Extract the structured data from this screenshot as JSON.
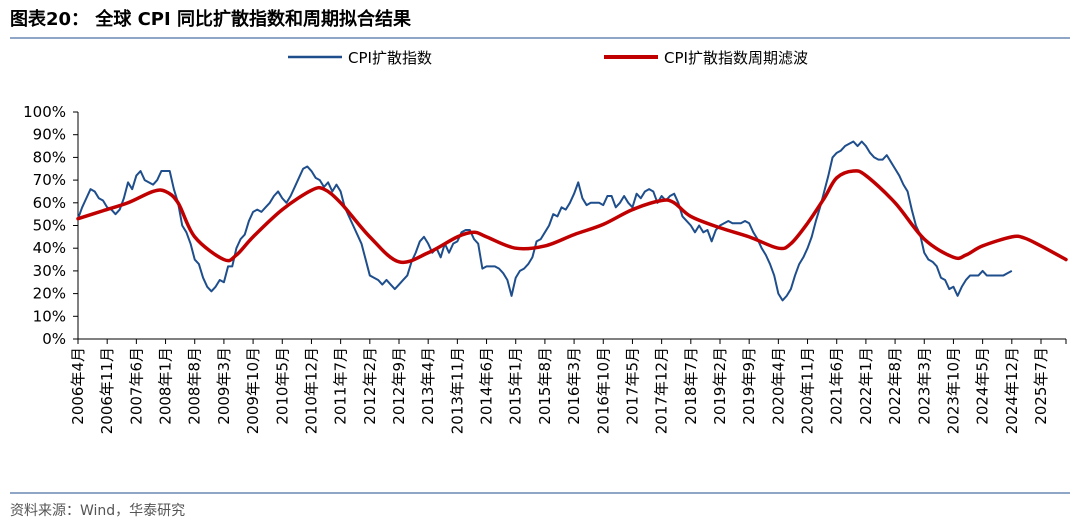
{
  "figure": {
    "title": "图表20：  全球 CPI 同比扩散指数和周期拟合结果",
    "source": "资料来源：Wind，华泰研究"
  },
  "colors": {
    "raw_series": "#1f4e8c",
    "filtered_series": "#c00000",
    "rule": "#1f4e8c",
    "axis": "#000000"
  },
  "chart_data": {
    "type": "line",
    "y_unit": "%",
    "ylim": [
      0,
      100
    ],
    "y_ticks": [
      0,
      10,
      20,
      30,
      40,
      50,
      60,
      70,
      80,
      90,
      100
    ],
    "y_tick_labels": [
      "0%",
      "10%",
      "20%",
      "30%",
      "40%",
      "50%",
      "60%",
      "70%",
      "80%",
      "90%",
      "100%"
    ],
    "x_range": [
      "2006-04",
      "2026-01"
    ],
    "x_tick_labels": [
      "2006年4月",
      "2006年11月",
      "2007年6月",
      "2008年1月",
      "2008年8月",
      "2009年3月",
      "2009年10月",
      "2010年5月",
      "2010年12月",
      "2011年7月",
      "2012年2月",
      "2012年9月",
      "2013年4月",
      "2013年11月",
      "2014年6月",
      "2015年1月",
      "2015年8月",
      "2016年3月",
      "2016年10月",
      "2017年5月",
      "2017年12月",
      "2018年7月",
      "2019年2月",
      "2019年9月",
      "2020年4月",
      "2020年11月",
      "2021年6月",
      "2022年1月",
      "2022年8月",
      "2023年3月",
      "2023年10月",
      "2024年5月",
      "2024年12月",
      "2025年7月"
    ],
    "grid": false,
    "legend_position": "top-center",
    "series": [
      {
        "name": "CPI扩散指数",
        "points": [
          [
            "2006-04",
            53
          ],
          [
            "2006-05",
            58
          ],
          [
            "2006-06",
            62
          ],
          [
            "2006-07",
            66
          ],
          [
            "2006-08",
            65
          ],
          [
            "2006-09",
            62
          ],
          [
            "2006-10",
            61
          ],
          [
            "2006-11",
            58
          ],
          [
            "2006-12",
            57
          ],
          [
            "2007-01",
            55
          ],
          [
            "2007-02",
            57
          ],
          [
            "2007-03",
            62
          ],
          [
            "2007-04",
            69
          ],
          [
            "2007-05",
            66
          ],
          [
            "2007-06",
            72
          ],
          [
            "2007-07",
            74
          ],
          [
            "2007-08",
            70
          ],
          [
            "2007-09",
            69
          ],
          [
            "2007-10",
            68
          ],
          [
            "2007-11",
            70
          ],
          [
            "2007-12",
            74
          ],
          [
            "2008-01",
            74
          ],
          [
            "2008-02",
            74
          ],
          [
            "2008-03",
            66
          ],
          [
            "2008-04",
            60
          ],
          [
            "2008-05",
            50
          ],
          [
            "2008-06",
            47
          ],
          [
            "2008-07",
            42
          ],
          [
            "2008-08",
            35
          ],
          [
            "2008-09",
            33
          ],
          [
            "2008-10",
            27
          ],
          [
            "2008-11",
            23
          ],
          [
            "2008-12",
            21
          ],
          [
            "2009-01",
            23
          ],
          [
            "2009-02",
            26
          ],
          [
            "2009-03",
            25
          ],
          [
            "2009-04",
            32
          ],
          [
            "2009-05",
            32
          ],
          [
            "2009-06",
            40
          ],
          [
            "2009-07",
            44
          ],
          [
            "2009-08",
            46
          ],
          [
            "2009-09",
            52
          ],
          [
            "2009-10",
            56
          ],
          [
            "2009-11",
            57
          ],
          [
            "2009-12",
            56
          ],
          [
            "2010-01",
            58
          ],
          [
            "2010-02",
            60
          ],
          [
            "2010-03",
            63
          ],
          [
            "2010-04",
            65
          ],
          [
            "2010-05",
            62
          ],
          [
            "2010-06",
            60
          ],
          [
            "2010-07",
            63
          ],
          [
            "2010-08",
            67
          ],
          [
            "2010-09",
            71
          ],
          [
            "2010-10",
            75
          ],
          [
            "2010-11",
            76
          ],
          [
            "2010-12",
            74
          ],
          [
            "2011-01",
            71
          ],
          [
            "2011-02",
            70
          ],
          [
            "2011-03",
            67
          ],
          [
            "2011-04",
            69
          ],
          [
            "2011-05",
            65
          ],
          [
            "2011-06",
            68
          ],
          [
            "2011-07",
            65
          ],
          [
            "2011-08",
            58
          ],
          [
            "2011-09",
            54
          ],
          [
            "2011-10",
            50
          ],
          [
            "2011-11",
            46
          ],
          [
            "2011-12",
            42
          ],
          [
            "2012-01",
            35
          ],
          [
            "2012-02",
            28
          ],
          [
            "2012-03",
            27
          ],
          [
            "2012-04",
            26
          ],
          [
            "2012-05",
            24
          ],
          [
            "2012-06",
            26
          ],
          [
            "2012-07",
            24
          ],
          [
            "2012-08",
            22
          ],
          [
            "2012-09",
            24
          ],
          [
            "2012-10",
            26
          ],
          [
            "2012-11",
            28
          ],
          [
            "2012-12",
            34
          ],
          [
            "2013-01",
            38
          ],
          [
            "2013-02",
            43
          ],
          [
            "2013-03",
            45
          ],
          [
            "2013-04",
            42
          ],
          [
            "2013-05",
            38
          ],
          [
            "2013-06",
            40
          ],
          [
            "2013-07",
            36
          ],
          [
            "2013-08",
            42
          ],
          [
            "2013-09",
            38
          ],
          [
            "2013-10",
            42
          ],
          [
            "2013-11",
            43
          ],
          [
            "2013-12",
            47
          ],
          [
            "2014-01",
            48
          ],
          [
            "2014-02",
            48
          ],
          [
            "2014-03",
            44
          ],
          [
            "2014-04",
            42
          ],
          [
            "2014-05",
            31
          ],
          [
            "2014-06",
            32
          ],
          [
            "2014-07",
            32
          ],
          [
            "2014-08",
            32
          ],
          [
            "2014-09",
            31
          ],
          [
            "2014-10",
            29
          ],
          [
            "2014-11",
            26
          ],
          [
            "2014-12",
            19
          ],
          [
            "2015-01",
            27
          ],
          [
            "2015-02",
            30
          ],
          [
            "2015-03",
            31
          ],
          [
            "2015-04",
            33
          ],
          [
            "2015-05",
            36
          ],
          [
            "2015-06",
            43
          ],
          [
            "2015-07",
            44
          ],
          [
            "2015-08",
            47
          ],
          [
            "2015-09",
            50
          ],
          [
            "2015-10",
            55
          ],
          [
            "2015-11",
            54
          ],
          [
            "2015-12",
            58
          ],
          [
            "2016-01",
            57
          ],
          [
            "2016-02",
            60
          ],
          [
            "2016-03",
            64
          ],
          [
            "2016-04",
            69
          ],
          [
            "2016-05",
            62
          ],
          [
            "2016-06",
            59
          ],
          [
            "2016-07",
            60
          ],
          [
            "2016-08",
            60
          ],
          [
            "2016-09",
            60
          ],
          [
            "2016-10",
            59
          ],
          [
            "2016-11",
            63
          ],
          [
            "2016-12",
            63
          ],
          [
            "2017-01",
            58
          ],
          [
            "2017-02",
            60
          ],
          [
            "2017-03",
            63
          ],
          [
            "2017-04",
            60
          ],
          [
            "2017-05",
            58
          ],
          [
            "2017-06",
            64
          ],
          [
            "2017-07",
            62
          ],
          [
            "2017-08",
            65
          ],
          [
            "2017-09",
            66
          ],
          [
            "2017-10",
            65
          ],
          [
            "2017-11",
            60
          ],
          [
            "2017-12",
            63
          ],
          [
            "2018-01",
            61
          ],
          [
            "2018-02",
            63
          ],
          [
            "2018-03",
            64
          ],
          [
            "2018-04",
            60
          ],
          [
            "2018-05",
            54
          ],
          [
            "2018-06",
            52
          ],
          [
            "2018-07",
            50
          ],
          [
            "2018-08",
            47
          ],
          [
            "2018-09",
            50
          ],
          [
            "2018-10",
            47
          ],
          [
            "2018-11",
            48
          ],
          [
            "2018-12",
            43
          ],
          [
            "2019-01",
            48
          ],
          [
            "2019-02",
            50
          ],
          [
            "2019-03",
            51
          ],
          [
            "2019-04",
            52
          ],
          [
            "2019-05",
            51
          ],
          [
            "2019-06",
            51
          ],
          [
            "2019-07",
            51
          ],
          [
            "2019-08",
            52
          ],
          [
            "2019-09",
            51
          ],
          [
            "2019-10",
            47
          ],
          [
            "2019-11",
            44
          ],
          [
            "2019-12",
            40
          ],
          [
            "2020-01",
            37
          ],
          [
            "2020-02",
            33
          ],
          [
            "2020-03",
            28
          ],
          [
            "2020-04",
            20
          ],
          [
            "2020-05",
            17
          ],
          [
            "2020-06",
            19
          ],
          [
            "2020-07",
            22
          ],
          [
            "2020-08",
            28
          ],
          [
            "2020-09",
            33
          ],
          [
            "2020-10",
            36
          ],
          [
            "2020-11",
            40
          ],
          [
            "2020-12",
            45
          ],
          [
            "2021-01",
            52
          ],
          [
            "2021-02",
            58
          ],
          [
            "2021-03",
            65
          ],
          [
            "2021-04",
            72
          ],
          [
            "2021-05",
            80
          ],
          [
            "2021-06",
            82
          ],
          [
            "2021-07",
            83
          ],
          [
            "2021-08",
            85
          ],
          [
            "2021-09",
            86
          ],
          [
            "2021-10",
            87
          ],
          [
            "2021-11",
            85
          ],
          [
            "2021-12",
            87
          ],
          [
            "2022-01",
            85
          ],
          [
            "2022-02",
            82
          ],
          [
            "2022-03",
            80
          ],
          [
            "2022-04",
            79
          ],
          [
            "2022-05",
            79
          ],
          [
            "2022-06",
            81
          ],
          [
            "2022-07",
            78
          ],
          [
            "2022-08",
            75
          ],
          [
            "2022-09",
            72
          ],
          [
            "2022-10",
            68
          ],
          [
            "2022-11",
            65
          ],
          [
            "2022-12",
            57
          ],
          [
            "2023-01",
            50
          ],
          [
            "2023-02",
            46
          ],
          [
            "2023-03",
            38
          ],
          [
            "2023-04",
            35
          ],
          [
            "2023-05",
            34
          ],
          [
            "2023-06",
            32
          ],
          [
            "2023-07",
            27
          ],
          [
            "2023-08",
            26
          ],
          [
            "2023-09",
            22
          ],
          [
            "2023-10",
            23
          ],
          [
            "2023-11",
            19
          ],
          [
            "2023-12",
            23
          ],
          [
            "2024-01",
            26
          ],
          [
            "2024-02",
            28
          ],
          [
            "2024-03",
            28
          ],
          [
            "2024-04",
            28
          ],
          [
            "2024-05",
            30
          ],
          [
            "2024-06",
            28
          ],
          [
            "2024-07",
            28
          ],
          [
            "2024-08",
            28
          ],
          [
            "2024-09",
            28
          ],
          [
            "2024-10",
            28
          ],
          [
            "2024-11",
            29
          ],
          [
            "2024-12",
            30
          ]
        ]
      },
      {
        "name": "CPI扩散指数周期滤波",
        "points": [
          [
            "2006-04",
            53
          ],
          [
            "2006-10",
            56.5
          ],
          [
            "2007-04",
            60
          ],
          [
            "2007-10",
            65
          ],
          [
            "2008-01",
            65
          ],
          [
            "2008-04",
            60
          ],
          [
            "2008-08",
            45
          ],
          [
            "2009-03",
            35
          ],
          [
            "2009-06",
            37
          ],
          [
            "2009-10",
            45
          ],
          [
            "2010-05",
            57
          ],
          [
            "2010-12",
            65.5
          ],
          [
            "2011-03",
            66
          ],
          [
            "2011-07",
            60
          ],
          [
            "2012-02",
            45
          ],
          [
            "2012-09",
            34
          ],
          [
            "2013-04",
            38
          ],
          [
            "2013-11",
            45
          ],
          [
            "2014-03",
            47
          ],
          [
            "2014-06",
            45
          ],
          [
            "2015-01",
            40
          ],
          [
            "2015-08",
            41
          ],
          [
            "2016-03",
            46
          ],
          [
            "2016-10",
            50.5
          ],
          [
            "2017-05",
            57
          ],
          [
            "2017-12",
            61
          ],
          [
            "2018-03",
            60
          ],
          [
            "2018-07",
            54
          ],
          [
            "2019-02",
            49
          ],
          [
            "2019-09",
            45
          ],
          [
            "2020-04",
            40
          ],
          [
            "2020-07",
            42
          ],
          [
            "2020-11",
            51
          ],
          [
            "2021-03",
            62
          ],
          [
            "2021-06",
            71
          ],
          [
            "2021-10",
            74
          ],
          [
            "2022-01",
            72
          ],
          [
            "2022-08",
            60
          ],
          [
            "2023-03",
            44
          ],
          [
            "2023-10",
            36
          ],
          [
            "2024-01",
            37
          ],
          [
            "2024-05",
            41
          ],
          [
            "2024-12",
            45
          ],
          [
            "2025-03",
            44.5
          ],
          [
            "2025-07",
            41
          ],
          [
            "2026-01",
            35
          ]
        ]
      }
    ]
  }
}
